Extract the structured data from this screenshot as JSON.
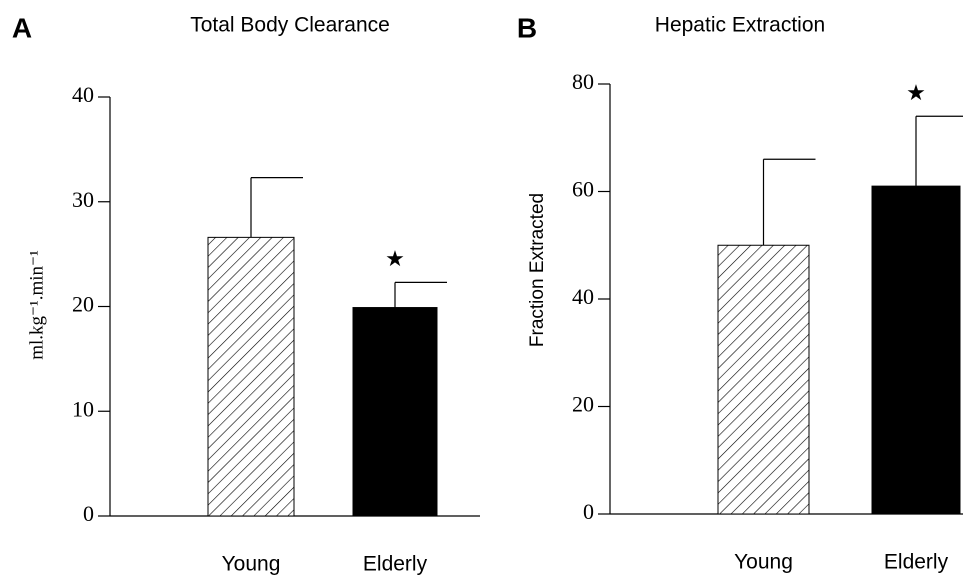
{
  "chart_data": [
    {
      "type": "bar",
      "panel": "A",
      "title": "Total Body Clearance",
      "y_label": "ml.kg⁻¹.min⁻¹",
      "categories": [
        "Young",
        "Elderly"
      ],
      "values": [
        26.6,
        19.9
      ],
      "errors": [
        5.7,
        2.4
      ],
      "patterns": [
        "hatch",
        "solid"
      ],
      "color": "#000000",
      "ylim": [
        0,
        40
      ],
      "yticks": [
        0,
        10,
        20,
        30,
        40
      ],
      "annotation": "★"
    },
    {
      "type": "bar",
      "panel": "B",
      "title": "Hepatic Extraction",
      "y_label": "Fraction Extracted",
      "categories": [
        "Young",
        "Elderly"
      ],
      "values": [
        50,
        61
      ],
      "errors": [
        16,
        13
      ],
      "patterns": [
        "hatch",
        "solid"
      ],
      "color": "#000000",
      "ylim": [
        0,
        80
      ],
      "yticks": [
        0,
        20,
        40,
        60,
        80
      ],
      "annotation": "★"
    }
  ]
}
